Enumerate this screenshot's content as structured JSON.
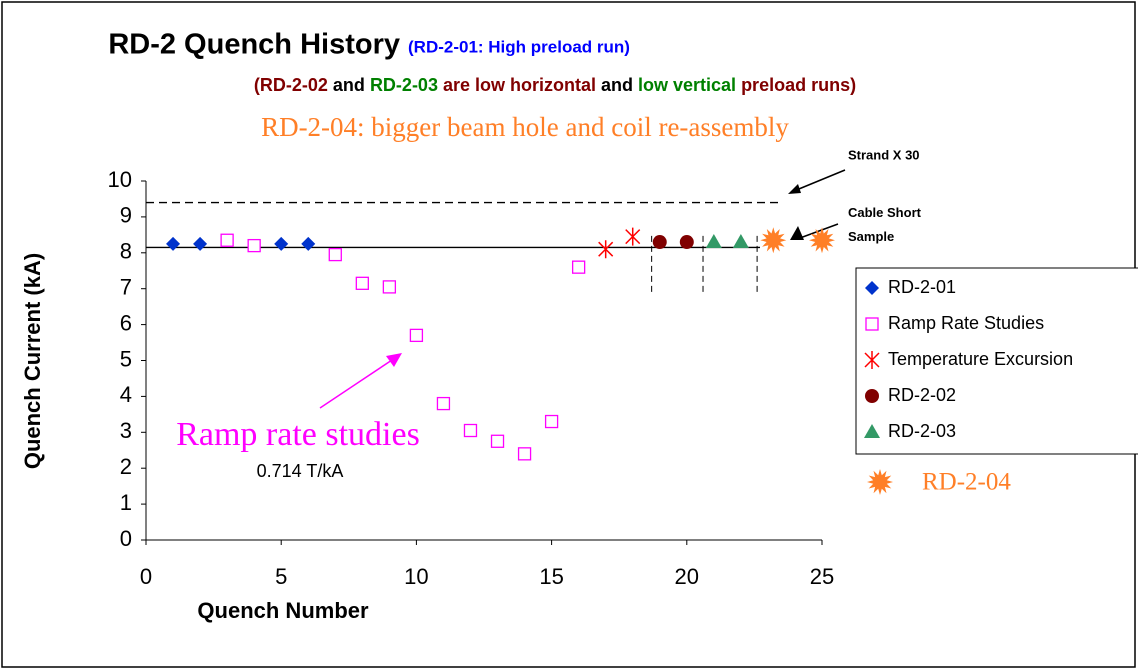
{
  "chart_data": {
    "type": "scatter",
    "title": "RD-2 Quench History",
    "subtitle": [
      {
        "text": "(RD-2-01: High preload run)",
        "color": "#0000ff"
      }
    ],
    "subtitle_line2": [
      {
        "text": "(RD-2-02",
        "color": "#800000"
      },
      {
        "text": "and",
        "color": "#000000"
      },
      {
        "text": "RD-2-03",
        "color": "#008000"
      },
      {
        "text": "are low horizontal",
        "color": "#800000"
      },
      {
        "text": "and",
        "color": "#000000"
      },
      {
        "text": "low vertical",
        "color": "#008000"
      },
      {
        "text": "preload runs)",
        "color": "#800000"
      }
    ],
    "subtitle_line3": {
      "text": "RD-2-04: bigger beam hole and coil re-assembly",
      "color": "#ff7f27"
    },
    "xlabel": "Quench Number",
    "ylabel": "Quench Current (kA)",
    "xlim": [
      0,
      25
    ],
    "ylim": [
      0,
      10
    ],
    "xticks": [
      0,
      5,
      10,
      15,
      20,
      25
    ],
    "yticks": [
      0,
      1,
      2,
      3,
      4,
      5,
      6,
      7,
      8,
      9,
      10
    ],
    "series": [
      {
        "name": "RD-2-01",
        "color": "#0033cc",
        "marker": "diamond",
        "x": [
          1,
          2,
          5,
          6
        ],
        "values": [
          8.25,
          8.25,
          8.25,
          8.25
        ]
      },
      {
        "name": "Ramp Rate Studies",
        "color": "#ff00ff",
        "marker": "square",
        "x": [
          3,
          4,
          7,
          8,
          9,
          10,
          11,
          12,
          13,
          14,
          15,
          16
        ],
        "values": [
          8.35,
          8.2,
          7.95,
          7.15,
          7.05,
          5.7,
          3.8,
          3.05,
          2.75,
          2.4,
          3.3,
          7.6
        ]
      },
      {
        "name": "Temperature Excursion",
        "color": "#ff0000",
        "marker": "asterisk",
        "x": [
          17,
          18
        ],
        "values": [
          8.1,
          8.45
        ]
      },
      {
        "name": "RD-2-02",
        "color": "#800000",
        "marker": "circle",
        "x": [
          19,
          20
        ],
        "values": [
          8.3,
          8.3
        ]
      },
      {
        "name": "RD-2-03",
        "color": "#339966",
        "marker": "triangle",
        "x": [
          21,
          22
        ],
        "values": [
          8.3,
          8.3
        ]
      },
      {
        "name": "RD-2-04",
        "color": "#ff7f27",
        "marker": "star",
        "x": [
          23.2,
          25
        ],
        "values": [
          8.35,
          8.35
        ]
      }
    ],
    "hlines": [
      {
        "value": 9.4,
        "style": "dashed",
        "label": "Strand X 30"
      },
      {
        "value": 8.15,
        "style": "solid",
        "label": "Cable Short Sample"
      }
    ],
    "vlines": [
      18.7,
      20.6,
      22.6
    ],
    "annotations": [
      {
        "text": "Ramp rate studies",
        "color": "#ff00ff"
      },
      {
        "text": "0.714 T/kA",
        "color": "#000000"
      }
    ]
  }
}
